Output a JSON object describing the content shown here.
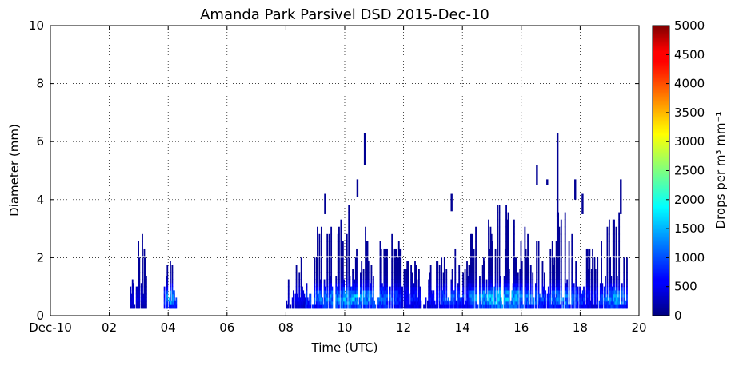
{
  "chart_data": {
    "type": "heatmap",
    "title": "Amanda Park Parsivel DSD 2015-Dec-10",
    "xlabel": "Time (UTC)",
    "ylabel": "Diameter (mm)",
    "xlim": [
      0,
      20
    ],
    "ylim": [
      0,
      10
    ],
    "x_ticks": [
      {
        "value": 0,
        "label": "Dec-10"
      },
      {
        "value": 2,
        "label": "02"
      },
      {
        "value": 4,
        "label": "04"
      },
      {
        "value": 6,
        "label": "06"
      },
      {
        "value": 8,
        "label": "08"
      },
      {
        "value": 10,
        "label": "10"
      },
      {
        "value": 12,
        "label": "12"
      },
      {
        "value": 14,
        "label": "14"
      },
      {
        "value": 16,
        "label": "16"
      },
      {
        "value": 18,
        "label": "18"
      },
      {
        "value": 20,
        "label": "20"
      }
    ],
    "y_ticks": [
      {
        "value": 0,
        "label": "0"
      },
      {
        "value": 2,
        "label": "2"
      },
      {
        "value": 4,
        "label": "4"
      },
      {
        "value": 6,
        "label": "6"
      },
      {
        "value": 8,
        "label": "8"
      },
      {
        "value": 10,
        "label": "10"
      }
    ],
    "grid": true,
    "colorbar": {
      "label": "Drops per m³ mm⁻¹",
      "min": 0,
      "max": 5000,
      "ticks": [
        {
          "value": 0,
          "label": "0"
        },
        {
          "value": 500,
          "label": "500"
        },
        {
          "value": 1000,
          "label": "1000"
        },
        {
          "value": 1500,
          "label": "1500"
        },
        {
          "value": 2000,
          "label": "2000"
        },
        {
          "value": 2500,
          "label": "2500"
        },
        {
          "value": 3000,
          "label": "3000"
        },
        {
          "value": 3500,
          "label": "3500"
        },
        {
          "value": 4000,
          "label": "4000"
        },
        {
          "value": 4500,
          "label": "4500"
        },
        {
          "value": 5000,
          "label": "5000"
        }
      ],
      "colormap": "jet"
    },
    "episodes": [
      {
        "t0": 2.7,
        "t1": 3.25,
        "dmin": 0.3,
        "dmax": 4.1,
        "peak_t": 2.85,
        "core": 400
      },
      {
        "t0": 3.85,
        "t1": 4.25,
        "dmin": 0.3,
        "dmax": 2.1,
        "peak_t": 4.05,
        "core": 1500
      },
      {
        "t0": 8.0,
        "t1": 8.65,
        "dmin": 0.3,
        "dmax": 2.3,
        "peak_t": 8.4,
        "core": 500
      },
      {
        "t0": 8.65,
        "t1": 11.9,
        "dmin": 0.3,
        "dmax": 4.1,
        "peak_t": 10.2,
        "core": 1500
      },
      {
        "t0": 11.9,
        "t1": 12.8,
        "dmin": 0.3,
        "dmax": 2.2,
        "peak_t": 12.3,
        "core": 700
      },
      {
        "t0": 12.8,
        "t1": 14.2,
        "dmin": 0.3,
        "dmax": 2.6,
        "peak_t": 13.6,
        "core": 1000
      },
      {
        "t0": 14.2,
        "t1": 16.9,
        "dmin": 0.3,
        "dmax": 4.1,
        "peak_t": 15.3,
        "core": 1700
      },
      {
        "t0": 16.9,
        "t1": 18.4,
        "dmin": 0.3,
        "dmax": 4.0,
        "peak_t": 17.4,
        "core": 1300
      },
      {
        "t0": 18.4,
        "t1": 19.6,
        "dmin": 0.3,
        "dmax": 4.6,
        "peak_t": 19.2,
        "core": 1400
      }
    ],
    "isolated_streaks": [
      {
        "t": 10.65,
        "dmin": 5.3,
        "dmax": 6.2
      },
      {
        "t": 10.4,
        "dmin": 4.2,
        "dmax": 4.6
      },
      {
        "t": 9.3,
        "dmin": 3.6,
        "dmax": 4.1
      },
      {
        "t": 13.6,
        "dmin": 3.7,
        "dmax": 4.1
      },
      {
        "t": 16.5,
        "dmin": 4.6,
        "dmax": 5.1
      },
      {
        "t": 16.85,
        "dmin": 4.6,
        "dmax": 4.6
      },
      {
        "t": 17.2,
        "dmin": 3.5,
        "dmax": 6.2
      },
      {
        "t": 17.8,
        "dmin": 4.1,
        "dmax": 4.6
      },
      {
        "t": 18.05,
        "dmin": 3.6,
        "dmax": 4.1
      },
      {
        "t": 19.35,
        "dmin": 3.6,
        "dmax": 4.6
      }
    ]
  }
}
